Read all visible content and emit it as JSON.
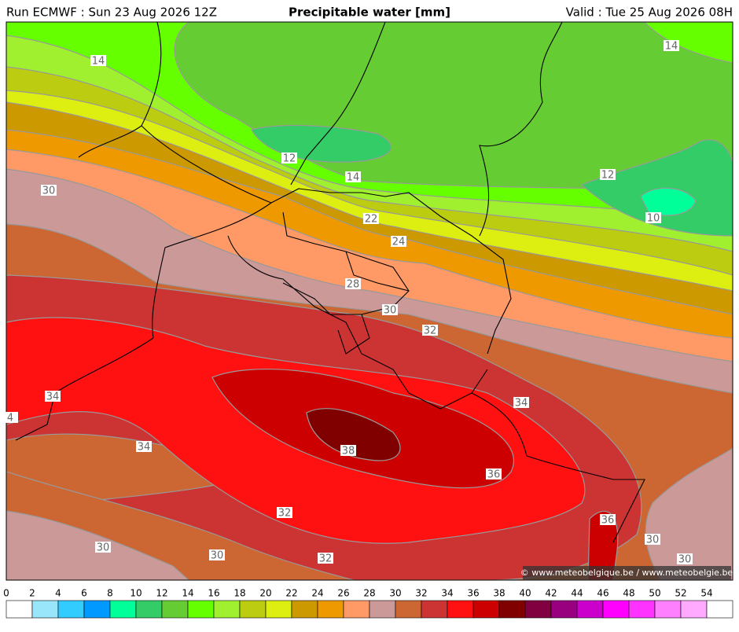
{
  "header": {
    "run": "Run ECMWF : Sun 23 Aug 2026 12Z",
    "title": "Precipitable water [mm]",
    "valid": "Valid : Tue 25 Aug 2026 08H"
  },
  "contour_labels": [
    14,
    12,
    14,
    22,
    24,
    28,
    30,
    32,
    30,
    34,
    4,
    34,
    38,
    36,
    34,
    32,
    36,
    30,
    30,
    32,
    30,
    30,
    14,
    12,
    10
  ],
  "colorbar": {
    "ticks": [
      0,
      2,
      4,
      6,
      8,
      10,
      12,
      14,
      16,
      18,
      20,
      22,
      24,
      26,
      28,
      30,
      32,
      34,
      36,
      38,
      40,
      42,
      44,
      46,
      48,
      50,
      52,
      54
    ],
    "colors": [
      "#ffffff",
      "#99e6fa",
      "#33ccff",
      "#0099ff",
      "#00ff99",
      "#33cc66",
      "#66cc33",
      "#66ff00",
      "#a0f030",
      "#bbcc11",
      "#ddee11",
      "#cc9900",
      "#ee9900",
      "#ff9966",
      "#cc9999",
      "#cc6633",
      "#cc3333",
      "#ff1111",
      "#cc0000",
      "#800000",
      "#800040",
      "#990080",
      "#cc00cc",
      "#ff00ff",
      "#ff33ff",
      "#ff80ff",
      "#ffaaff",
      "#ffffff"
    ]
  },
  "credit": "© www.meteobelgique.be / www.meteobelgie.be"
}
